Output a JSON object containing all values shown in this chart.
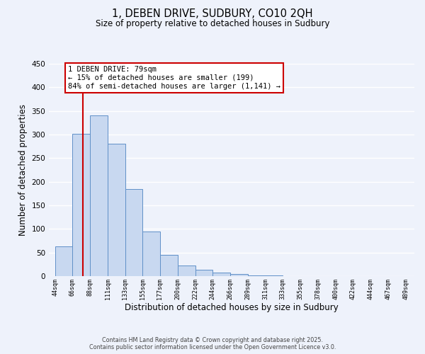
{
  "title": "1, DEBEN DRIVE, SUDBURY, CO10 2QH",
  "subtitle": "Size of property relative to detached houses in Sudbury",
  "xlabel": "Distribution of detached houses by size in Sudbury",
  "ylabel": "Number of detached properties",
  "bar_left_edges": [
    44,
    66,
    88,
    111,
    133,
    155,
    177,
    200,
    222,
    244,
    266,
    289,
    311,
    333,
    355,
    378,
    400,
    422,
    444,
    467
  ],
  "bar_heights": [
    63,
    301,
    340,
    280,
    185,
    95,
    45,
    22,
    14,
    7,
    5,
    2,
    1,
    0,
    0,
    0,
    0,
    0,
    0,
    0
  ],
  "bar_widths": [
    22,
    22,
    23,
    22,
    22,
    22,
    23,
    22,
    22,
    22,
    23,
    22,
    22,
    22,
    23,
    22,
    22,
    22,
    23,
    22
  ],
  "bar_color": "#c8d8f0",
  "bar_edge_color": "#6090c8",
  "tick_labels": [
    "44sqm",
    "66sqm",
    "88sqm",
    "111sqm",
    "133sqm",
    "155sqm",
    "177sqm",
    "200sqm",
    "222sqm",
    "244sqm",
    "266sqm",
    "289sqm",
    "311sqm",
    "333sqm",
    "355sqm",
    "378sqm",
    "400sqm",
    "422sqm",
    "444sqm",
    "467sqm",
    "489sqm"
  ],
  "tick_positions": [
    44,
    66,
    88,
    111,
    133,
    155,
    177,
    200,
    222,
    244,
    266,
    289,
    311,
    333,
    355,
    378,
    400,
    422,
    444,
    467,
    489
  ],
  "ylim": [
    0,
    450
  ],
  "xlim": [
    36,
    500
  ],
  "yticks": [
    0,
    50,
    100,
    150,
    200,
    250,
    300,
    350,
    400,
    450
  ],
  "property_line_x": 79,
  "property_line_color": "#cc0000",
  "annotation_line1": "1 DEBEN DRIVE: 79sqm",
  "annotation_line2": "← 15% of detached houses are smaller (199)",
  "annotation_line3": "84% of semi-detached houses are larger (1,141) →",
  "annotation_box_color": "#ffffff",
  "annotation_box_edge_color": "#cc0000",
  "footer_line1": "Contains HM Land Registry data © Crown copyright and database right 2025.",
  "footer_line2": "Contains public sector information licensed under the Open Government Licence v3.0.",
  "bg_color": "#eef2fb",
  "grid_color": "#ffffff"
}
